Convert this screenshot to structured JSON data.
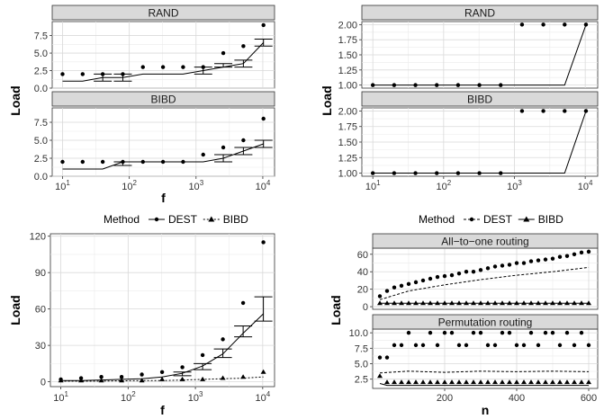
{
  "chart_data": [
    {
      "type": "scatter",
      "ylabel": "Load",
      "xlabel": "f",
      "xscale": "log",
      "xlim": [
        7,
        15000
      ],
      "xticks": [
        10,
        100,
        1000,
        10000
      ],
      "xtick_labels": [
        [
          "10",
          "1"
        ],
        [
          "10",
          "2"
        ],
        [
          "10",
          "3"
        ],
        [
          "10",
          "4"
        ]
      ],
      "panels": [
        {
          "strip": "RAND",
          "ylim": [
            0,
            9.5
          ],
          "yticks": [
            0.0,
            2.5,
            5.0,
            7.5
          ],
          "ytick_labels": [
            "0.0",
            "2.5",
            "5.0",
            "7.5"
          ],
          "points": {
            "x": [
              10,
              20,
              40,
              80,
              160,
              320,
              640,
              1280,
              2560,
              5120,
              10240
            ],
            "y": [
              2,
              2,
              2,
              2,
              3,
              3,
              3,
              3,
              5,
              6,
              9
            ]
          },
          "line": {
            "x": [
              10,
              20,
              40,
              80,
              160,
              320,
              640,
              1280,
              2560,
              5120,
              10240
            ],
            "y": [
              1,
              1,
              1.5,
              1.5,
              2,
              2,
              2,
              2.5,
              3,
              3.5,
              6.5
            ]
          },
          "errorbars": [
            {
              "x": 40,
              "lo": 1,
              "hi": 2
            },
            {
              "x": 80,
              "lo": 1,
              "hi": 2
            },
            {
              "x": 1280,
              "lo": 2,
              "hi": 3
            },
            {
              "x": 2560,
              "lo": 3,
              "hi": 3.5
            },
            {
              "x": 5120,
              "lo": 3,
              "hi": 4
            },
            {
              "x": 10240,
              "lo": 6,
              "hi": 7
            }
          ]
        },
        {
          "strip": "BIBD",
          "ylim": [
            0,
            9.5
          ],
          "yticks": [
            0.0,
            2.5,
            5.0,
            7.5
          ],
          "ytick_labels": [
            "0.0",
            "2.5",
            "5.0",
            "7.5"
          ],
          "points": {
            "x": [
              10,
              20,
              40,
              80,
              160,
              320,
              640,
              1280,
              2560,
              5120,
              10240
            ],
            "y": [
              2,
              2,
              2,
              2,
              2,
              2,
              2,
              3,
              4,
              5,
              8
            ]
          },
          "line": {
            "x": [
              10,
              20,
              40,
              80,
              160,
              320,
              640,
              1280,
              2560,
              5120,
              10240
            ],
            "y": [
              1,
              1,
              1,
              2,
              2,
              2,
              2,
              2,
              2.5,
              3.5,
              4.5
            ]
          },
          "errorbars": [
            {
              "x": 80,
              "lo": 1.5,
              "hi": 2
            },
            {
              "x": 2560,
              "lo": 2,
              "hi": 3
            },
            {
              "x": 5120,
              "lo": 3,
              "hi": 4
            },
            {
              "x": 10240,
              "lo": 4,
              "hi": 5
            }
          ]
        }
      ]
    },
    {
      "type": "scatter",
      "ylabel": "Load",
      "xscale": "log",
      "xlim": [
        7,
        15000
      ],
      "xticks": [
        10,
        100,
        1000,
        10000
      ],
      "xtick_labels": [
        [
          "10",
          "1"
        ],
        [
          "10",
          "2"
        ],
        [
          "10",
          "3"
        ],
        [
          "10",
          "4"
        ]
      ],
      "panels": [
        {
          "strip": "RAND",
          "ylim": [
            0.95,
            2.05
          ],
          "yticks": [
            1.0,
            1.25,
            1.5,
            1.75,
            2.0
          ],
          "ytick_labels": [
            "1.00",
            "1.25",
            "1.50",
            "1.75",
            "2.00"
          ],
          "points": {
            "x": [
              10,
              20,
              40,
              80,
              160,
              320,
              640,
              1280,
              2560,
              5120,
              10240
            ],
            "y": [
              1,
              1,
              1,
              1,
              1,
              1,
              1,
              2,
              2,
              2,
              2
            ]
          },
          "line": {
            "x": [
              10,
              5120,
              10240
            ],
            "y": [
              1,
              1,
              2
            ]
          }
        },
        {
          "strip": "BIBD",
          "ylim": [
            0.95,
            2.05
          ],
          "yticks": [
            1.0,
            1.25,
            1.5,
            1.75,
            2.0
          ],
          "ytick_labels": [
            "1.00",
            "1.25",
            "1.50",
            "1.75",
            "2.00"
          ],
          "points": {
            "x": [
              10,
              20,
              40,
              80,
              160,
              320,
              640,
              1280,
              2560,
              5120,
              10240
            ],
            "y": [
              1,
              1,
              1,
              1,
              1,
              1,
              1,
              2,
              2,
              2,
              2
            ]
          },
          "line": {
            "x": [
              10,
              5120,
              10240
            ],
            "y": [
              1,
              1,
              2
            ]
          }
        }
      ]
    },
    {
      "type": "scatter",
      "ylabel": "Load",
      "xlabel": "f",
      "xscale": "log",
      "xlim": [
        7,
        15000
      ],
      "ylim": [
        -4,
        122
      ],
      "xticks": [
        10,
        100,
        1000,
        10000
      ],
      "xtick_labels": [
        [
          "10",
          "1"
        ],
        [
          "10",
          "2"
        ],
        [
          "10",
          "3"
        ],
        [
          "10",
          "4"
        ]
      ],
      "yticks": [
        0,
        30,
        60,
        90,
        120
      ],
      "ytick_labels": [
        "0",
        "30",
        "60",
        "90",
        "120"
      ],
      "legend": {
        "title": "Method",
        "position": "top",
        "entries": [
          "DEST",
          "BIBD"
        ]
      },
      "series": [
        {
          "name": "DEST",
          "points": {
            "x": [
              10,
              20,
              40,
              80,
              160,
              320,
              640,
              1280,
              2560,
              5120,
              10240
            ],
            "y": [
              2,
              3,
              4,
              4,
              6,
              8,
              12,
              22,
              35,
              65,
              115
            ]
          },
          "line": {
            "x": [
              10,
              20,
              40,
              80,
              160,
              320,
              640,
              1280,
              2560,
              5120,
              10240
            ],
            "y": [
              1,
              1,
              1.5,
              2,
              2.5,
              4,
              7,
              13,
              23,
              40,
              56
            ]
          },
          "errorbars": [
            {
              "x": 640,
              "lo": 5,
              "hi": 8
            },
            {
              "x": 1280,
              "lo": 10,
              "hi": 15
            },
            {
              "x": 2560,
              "lo": 20,
              "hi": 27
            },
            {
              "x": 5120,
              "lo": 37,
              "hi": 46
            },
            {
              "x": 10240,
              "lo": 50,
              "hi": 70
            }
          ]
        },
        {
          "name": "BIBD",
          "points": {
            "x": [
              10,
              20,
              40,
              80,
              160,
              320,
              640,
              1280,
              2560,
              5120,
              10240
            ],
            "y": [
              1,
              1,
              1,
              1,
              1,
              2,
              2,
              2,
              3,
              4,
              8
            ]
          },
          "line": {
            "x": [
              10,
              20,
              40,
              80,
              160,
              320,
              640,
              1280,
              2560,
              5120,
              10240
            ],
            "y": [
              0.5,
              0.5,
              0.5,
              0.8,
              1,
              1,
              1.5,
              2,
              2.5,
              3,
              4
            ]
          }
        }
      ]
    },
    {
      "type": "scatter",
      "ylabel": "Load",
      "xlabel": "n",
      "xlim": [
        0,
        625
      ],
      "xticks": [
        200,
        400,
        600
      ],
      "xtick_labels": [
        "200",
        "400",
        "600"
      ],
      "legend": {
        "title": "Method",
        "position": "top",
        "entries": [
          "DEST",
          "BIBD"
        ]
      },
      "panels": [
        {
          "strip": "All−to−one routing",
          "ylim": [
            -3,
            67
          ],
          "yticks": [
            0,
            20,
            40,
            60
          ],
          "ytick_labels": [
            "0",
            "20",
            "40",
            "60"
          ],
          "series": [
            {
              "name": "DEST",
              "points": {
                "x": [
                  20,
                  40,
                  60,
                  80,
                  100,
                  120,
                  140,
                  160,
                  180,
                  200,
                  220,
                  240,
                  260,
                  280,
                  300,
                  320,
                  340,
                  360,
                  380,
                  400,
                  420,
                  440,
                  460,
                  480,
                  500,
                  520,
                  540,
                  560,
                  580,
                  600
                ],
                "y": [
                  12,
                  18,
                  22,
                  24,
                  26,
                  28,
                  30,
                  32,
                  34,
                  35,
                  36,
                  38,
                  40,
                  40,
                  42,
                  44,
                  46,
                  47,
                  48,
                  50,
                  50,
                  52,
                  53,
                  54,
                  55,
                  57,
                  58,
                  60,
                  62,
                  63
                ]
              },
              "line": {
                "x": [
                  20,
                  100,
                  200,
                  300,
                  400,
                  500,
                  600
                ],
                "y": [
                  8,
                  18,
                  25,
                  31,
                  36,
                  40,
                  45
                ]
              }
            },
            {
              "name": "BIBD",
              "points": {
                "x": [
                  20,
                  40,
                  60,
                  80,
                  100,
                  120,
                  140,
                  160,
                  180,
                  200,
                  220,
                  240,
                  260,
                  280,
                  300,
                  320,
                  340,
                  360,
                  380,
                  400,
                  420,
                  440,
                  460,
                  480,
                  500,
                  520,
                  540,
                  560,
                  580,
                  600
                ],
                "y": [
                  4,
                  4,
                  4,
                  4,
                  4,
                  4,
                  4,
                  4,
                  4,
                  4,
                  4,
                  4,
                  4,
                  4,
                  4,
                  4,
                  4,
                  4,
                  4,
                  4,
                  4,
                  4,
                  4,
                  4,
                  4,
                  4,
                  4,
                  4,
                  4,
                  4
                ]
              },
              "line": {
                "x": [
                  20,
                  600
                ],
                "y": [
                  4,
                  4
                ]
              }
            }
          ]
        },
        {
          "strip": "Permutation routing",
          "ylim": [
            1.0,
            10.6
          ],
          "yticks": [
            2.5,
            5.0,
            7.5,
            10.0
          ],
          "ytick_labels": [
            "2.5",
            "5.0",
            "7.5",
            "10.0"
          ],
          "series": [
            {
              "name": "DEST",
              "points": {
                "x": [
                  20,
                  40,
                  60,
                  80,
                  100,
                  120,
                  140,
                  160,
                  180,
                  200,
                  220,
                  240,
                  260,
                  280,
                  300,
                  320,
                  340,
                  360,
                  380,
                  400,
                  420,
                  440,
                  460,
                  480,
                  500,
                  520,
                  540,
                  560,
                  580,
                  600
                ],
                "y": [
                  6,
                  6,
                  8,
                  8,
                  10,
                  8,
                  8,
                  10,
                  8,
                  10,
                  10,
                  8,
                  8,
                  10,
                  10,
                  8,
                  8,
                  10,
                  10,
                  8,
                  8,
                  10,
                  8,
                  10,
                  10,
                  8,
                  10,
                  8,
                  10,
                  8
                ]
              },
              "line": {
                "x": [
                  20,
                  100,
                  200,
                  300,
                  400,
                  500,
                  600
                ],
                "y": [
                  3.5,
                  3.8,
                  3.6,
                  3.8,
                  3.7,
                  3.8,
                  3.7
                ]
              }
            },
            {
              "name": "BIBD",
              "points": {
                "x": [
                  20,
                  40,
                  60,
                  80,
                  100,
                  120,
                  140,
                  160,
                  180,
                  200,
                  220,
                  240,
                  260,
                  280,
                  300,
                  320,
                  340,
                  360,
                  380,
                  400,
                  420,
                  440,
                  460,
                  480,
                  500,
                  520,
                  540,
                  560,
                  580,
                  600
                ],
                "y": [
                  3,
                  2,
                  2,
                  2,
                  2,
                  2,
                  2,
                  2,
                  2,
                  2,
                  2,
                  2,
                  2,
                  2,
                  2,
                  2,
                  2,
                  2,
                  2,
                  2,
                  2,
                  2,
                  2,
                  2,
                  2,
                  2,
                  2,
                  2,
                  2,
                  2
                ]
              },
              "line": {
                "x": [
                  20,
                  40,
                  600
                ],
                "y": [
                  1.8,
                  1.5,
                  1.5
                ]
              }
            }
          ]
        }
      ]
    }
  ]
}
